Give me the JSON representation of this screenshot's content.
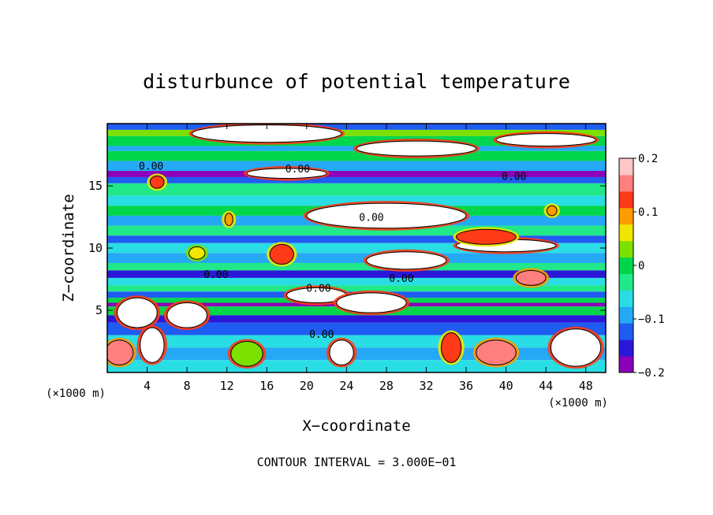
{
  "chart_data": {
    "type": "heatmap",
    "title": "disturbunce of potential temperature",
    "xlabel": "X−coordinate",
    "ylabel": "Z−coordinate",
    "x_unit_left": "(×1000 m)",
    "x_unit_right": "(×1000 m)",
    "xlim": [
      0,
      50
    ],
    "ylim": [
      0,
      20
    ],
    "x_ticks": [
      4,
      8,
      12,
      16,
      20,
      24,
      28,
      32,
      36,
      40,
      44,
      48
    ],
    "y_ticks": [
      5,
      10,
      15
    ],
    "contour_interval_text": "CONTOUR INTERVAL = 3.000E−01",
    "contour_labels": [
      {
        "text": "0.00",
        "x": 4.4,
        "z": 16.6
      },
      {
        "text": "0.00",
        "x": 19.1,
        "z": 16.4
      },
      {
        "text": "0.00",
        "x": 40.8,
        "z": 15.8
      },
      {
        "text": "0.00",
        "x": 26.5,
        "z": 12.5
      },
      {
        "text": "0.00",
        "x": 10.9,
        "z": 7.9
      },
      {
        "text": "0.00",
        "x": 29.5,
        "z": 7.6
      },
      {
        "text": "0.00",
        "x": 21.2,
        "z": 6.8
      },
      {
        "text": "0.00",
        "x": 21.5,
        "z": 3.1
      }
    ],
    "colorbar": {
      "vmin": -0.2,
      "vmax": 0.2,
      "tick_values": [
        0.2,
        0.1,
        0,
        -0.1,
        -0.2
      ],
      "tick_labels": [
        "0.2",
        "0.1",
        "0",
        "−0.1",
        "−0.2"
      ],
      "colors": [
        "#8b00b8",
        "#2a18d8",
        "#1f5cf2",
        "#25a8f6",
        "#29dde4",
        "#21e889",
        "#00d64c",
        "#7ce000",
        "#f0e600",
        "#ff9c00",
        "#ff3a16",
        "#ff7f7f",
        "#ffc7c7"
      ]
    },
    "bands": [
      {
        "z0": 19.5,
        "z1": 20.0,
        "value": -0.12
      },
      {
        "z0": 19.0,
        "z1": 19.5,
        "value": 0.02
      },
      {
        "z0": 18.2,
        "z1": 19.0,
        "value": 0.0
      },
      {
        "z0": 17.8,
        "z1": 18.2,
        "value": -0.08
      },
      {
        "z0": 17.0,
        "z1": 17.8,
        "value": 0.0
      },
      {
        "z0": 16.2,
        "z1": 17.0,
        "value": -0.08
      },
      {
        "z0": 15.7,
        "z1": 16.2,
        "value": -0.17
      },
      {
        "z0": 15.2,
        "z1": 15.7,
        "value": -0.11
      },
      {
        "z0": 14.2,
        "z1": 15.2,
        "value": -0.03
      },
      {
        "z0": 13.4,
        "z1": 14.2,
        "value": -0.05
      },
      {
        "z0": 12.6,
        "z1": 13.4,
        "value": -0.01
      },
      {
        "z0": 11.8,
        "z1": 12.6,
        "value": -0.08
      },
      {
        "z0": 11.0,
        "z1": 11.8,
        "value": -0.03
      },
      {
        "z0": 10.4,
        "z1": 11.0,
        "value": -0.12
      },
      {
        "z0": 9.6,
        "z1": 10.4,
        "value": -0.05
      },
      {
        "z0": 8.8,
        "z1": 9.6,
        "value": -0.09
      },
      {
        "z0": 8.2,
        "z1": 8.8,
        "value": -0.03
      },
      {
        "z0": 7.6,
        "z1": 8.2,
        "value": -0.14
      },
      {
        "z0": 7.0,
        "z1": 7.6,
        "value": -0.06
      },
      {
        "z0": 6.5,
        "z1": 7.0,
        "value": -0.02
      },
      {
        "z0": 6.0,
        "z1": 6.5,
        "value": -0.12
      },
      {
        "z0": 5.6,
        "z1": 6.0,
        "value": 0.0
      },
      {
        "z0": 5.3,
        "z1": 5.6,
        "value": -0.19
      },
      {
        "z0": 4.6,
        "z1": 5.3,
        "value": 0.0
      },
      {
        "z0": 4.0,
        "z1": 4.6,
        "value": -0.16
      },
      {
        "z0": 3.0,
        "z1": 4.0,
        "value": -0.11
      },
      {
        "z0": 2.0,
        "z1": 3.0,
        "value": -0.06
      },
      {
        "z0": 1.0,
        "z1": 2.0,
        "value": -0.09
      },
      {
        "z0": 0.0,
        "z1": 1.0,
        "value": -0.07
      }
    ],
    "blobs": [
      {
        "x": 16.0,
        "z": 19.2,
        "rx": 7.5,
        "rz": 0.7,
        "value": 0.0
      },
      {
        "x": 31.0,
        "z": 18.0,
        "rx": 6.0,
        "rz": 0.6,
        "value": 0.0
      },
      {
        "x": 44.0,
        "z": 18.7,
        "rx": 5.0,
        "rz": 0.5,
        "value": 0.0
      },
      {
        "x": 18.0,
        "z": 16.0,
        "rx": 4.0,
        "rz": 0.4,
        "value": 0.0
      },
      {
        "x": 28.0,
        "z": 12.6,
        "rx": 8.0,
        "rz": 1.0,
        "value": 0.0
      },
      {
        "x": 30.0,
        "z": 9.0,
        "rx": 4.0,
        "rz": 0.7,
        "value": 0.0
      },
      {
        "x": 40.0,
        "z": 10.2,
        "rx": 5.0,
        "rz": 0.5,
        "value": 0.0
      },
      {
        "x": 38.0,
        "z": 10.9,
        "rx": 3.0,
        "rz": 0.6,
        "value": 0.12
      },
      {
        "x": 21.0,
        "z": 6.2,
        "rx": 3.0,
        "rz": 0.6,
        "value": 0.0
      },
      {
        "x": 26.5,
        "z": 5.6,
        "rx": 3.5,
        "rz": 0.8,
        "value": 0.0
      },
      {
        "x": 8.0,
        "z": 4.6,
        "rx": 2.0,
        "rz": 1.0,
        "value": 0.0
      },
      {
        "x": 3.0,
        "z": 4.8,
        "rx": 2.0,
        "rz": 1.2,
        "value": 0.0
      },
      {
        "x": 1.2,
        "z": 1.6,
        "rx": 1.4,
        "rz": 1.0,
        "value": 0.16
      },
      {
        "x": 4.5,
        "z": 2.2,
        "rx": 1.2,
        "rz": 1.4,
        "value": 0.0
      },
      {
        "x": 14.0,
        "z": 1.5,
        "rx": 1.6,
        "rz": 1.0,
        "value": 0.04
      },
      {
        "x": 23.5,
        "z": 1.6,
        "rx": 1.2,
        "rz": 1.0,
        "value": 0.0
      },
      {
        "x": 34.5,
        "z": 2.0,
        "rx": 1.0,
        "rz": 1.2,
        "value": 0.12
      },
      {
        "x": 39.0,
        "z": 1.6,
        "rx": 2.0,
        "rz": 1.0,
        "value": 0.16
      },
      {
        "x": 47.0,
        "z": 2.0,
        "rx": 2.5,
        "rz": 1.5,
        "value": 0.0
      },
      {
        "x": 5.0,
        "z": 15.3,
        "rx": 0.7,
        "rz": 0.5,
        "value": 0.12
      },
      {
        "x": 12.2,
        "z": 12.3,
        "rx": 0.4,
        "rz": 0.5,
        "value": 0.1
      },
      {
        "x": 9.0,
        "z": 9.6,
        "rx": 0.8,
        "rz": 0.5,
        "value": 0.06
      },
      {
        "x": 17.5,
        "z": 9.5,
        "rx": 1.2,
        "rz": 0.8,
        "value": 0.12
      },
      {
        "x": 44.6,
        "z": 13.0,
        "rx": 0.5,
        "rz": 0.4,
        "value": 0.1
      },
      {
        "x": 42.5,
        "z": 7.6,
        "rx": 1.5,
        "rz": 0.6,
        "value": 0.14
      }
    ]
  }
}
